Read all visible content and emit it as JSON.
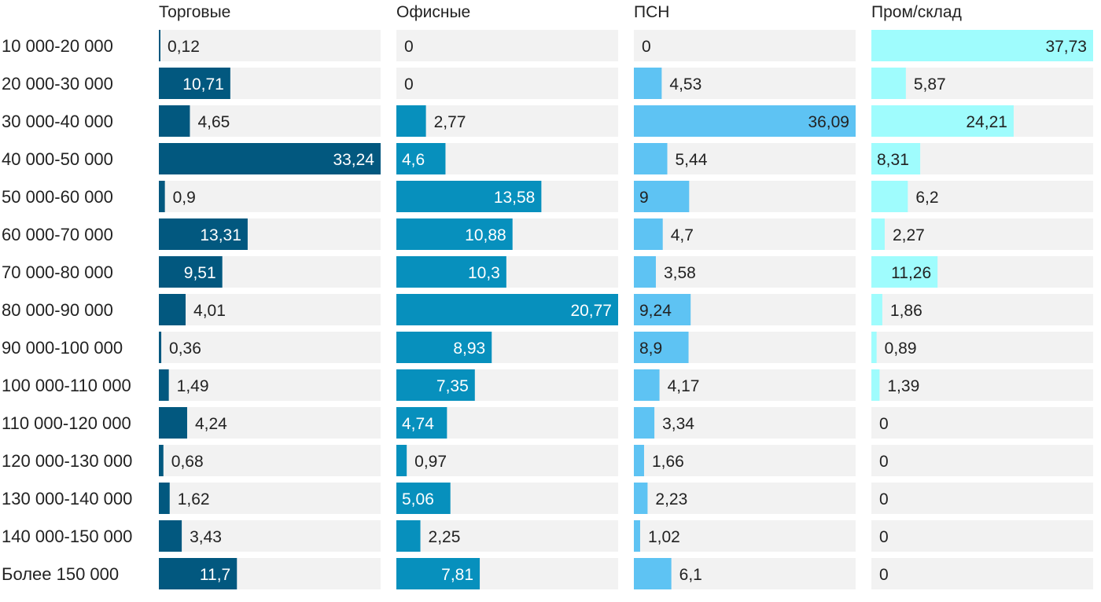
{
  "chart_data": {
    "type": "bar",
    "orientation": "horizontal",
    "layout": "small-multiples",
    "categories": [
      "10 000-20 000",
      "20 000-30 000",
      "30 000-40 000",
      "40 000-50 000",
      "50 000-60 000",
      "60 000-70 000",
      "70 000-80 000",
      "80 000-90 000",
      "90 000-100 000",
      "100 000-110 000",
      "110 000-120 000",
      "120 000-130 000",
      "130 000-140 000",
      "140 000-150 000",
      "Более 150 000"
    ],
    "series": [
      {
        "name": "Торговые",
        "color": "#02587f",
        "max": 33.24,
        "values": [
          0.12,
          10.71,
          4.65,
          33.24,
          0.9,
          13.31,
          9.51,
          4.01,
          0.36,
          1.49,
          4.24,
          0.68,
          1.62,
          3.43,
          11.7
        ],
        "labels": [
          "0,12",
          "10,71",
          "4,65",
          "33,24",
          "0,9",
          "13,31",
          "9,51",
          "4,01",
          "0,36",
          "1,49",
          "4,24",
          "0,68",
          "1,62",
          "3,43",
          "11,7"
        ]
      },
      {
        "name": "Офисные",
        "color": "#0790bd",
        "max": 20.77,
        "values": [
          0,
          0,
          2.77,
          4.6,
          13.58,
          10.88,
          10.3,
          20.77,
          8.93,
          7.35,
          4.74,
          0.97,
          5.06,
          2.25,
          7.81
        ],
        "labels": [
          "0",
          "0",
          "2,77",
          "4,6",
          "13,58",
          "10,88",
          "10,3",
          "20,77",
          "8,93",
          "7,35",
          "4,74",
          "0,97",
          "5,06",
          "2,25",
          "7,81"
        ]
      },
      {
        "name": "ПСН",
        "color": "#5ec3f3",
        "max": 36.09,
        "values": [
          0,
          4.53,
          36.09,
          5.44,
          9,
          4.7,
          3.58,
          9.24,
          8.9,
          4.17,
          3.34,
          1.66,
          2.23,
          1.02,
          6.1
        ],
        "labels": [
          "0",
          "4,53",
          "36,09",
          "5,44",
          "9",
          "4,7",
          "3,58",
          "9,24",
          "8,9",
          "4,17",
          "3,34",
          "1,66",
          "2,23",
          "1,02",
          "6,1"
        ]
      },
      {
        "name": "Пром/склад",
        "color": "#9ffcfd",
        "max": 37.73,
        "values": [
          37.73,
          5.87,
          24.21,
          8.31,
          6.2,
          2.27,
          11.26,
          1.86,
          0.89,
          1.39,
          0,
          0,
          0,
          0,
          0
        ],
        "labels": [
          "37,73",
          "5,87",
          "24,21",
          "8,31",
          "6,2",
          "2,27",
          "11,26",
          "1,86",
          "0,89",
          "1,39",
          "0",
          "0",
          "0",
          "0",
          "0"
        ]
      }
    ],
    "track_color": "#f2f2f2",
    "grid": false,
    "legend": "column-titles"
  }
}
